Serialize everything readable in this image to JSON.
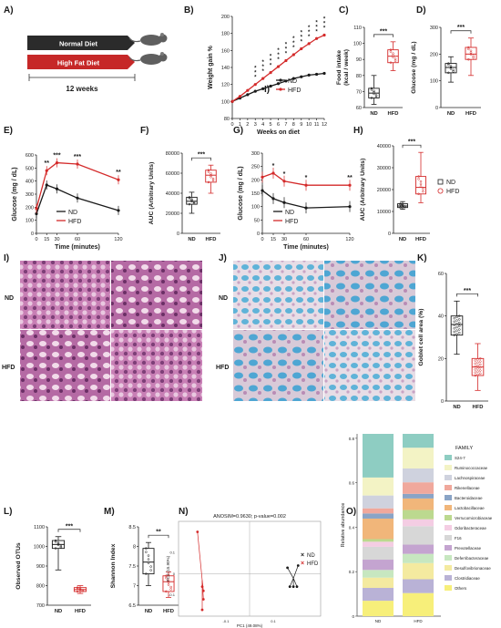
{
  "panel_letters": [
    "A)",
    "B)",
    "C)",
    "D)",
    "E)",
    "F)",
    "G)",
    "H)",
    "I)",
    "J)",
    "K)",
    "L)",
    "M)",
    "N)",
    "O)"
  ],
  "diet_labels": {
    "nd": "Normal Diet",
    "hfd": "High Fat Diet",
    "duration": "12 weeks"
  },
  "common": {
    "nd": "ND",
    "hfd": "HFD",
    "sig3": "***",
    "sig2": "**",
    "sig1": "*"
  },
  "colors": {
    "nd": "#1a1a1a",
    "hfd": "#d42a2a",
    "arrow_dark": "#2b2b2b",
    "arrow_red": "#c62828"
  },
  "histo_labels": {
    "row_nd": "ND",
    "row_hfd": "HFD"
  },
  "chart_data": [
    {
      "id": "B",
      "type": "line",
      "xlabel": "Weeks on diet",
      "ylabel": "Weight gain %",
      "ylim": [
        80,
        200
      ],
      "yticks": [
        80,
        100,
        120,
        140,
        160,
        180,
        200
      ],
      "x": [
        0,
        1,
        2,
        3,
        4,
        5,
        6,
        7,
        8,
        9,
        10,
        11,
        12
      ],
      "series": [
        {
          "name": "ND",
          "values": [
            100,
            104,
            108,
            112,
            115,
            118,
            121,
            124,
            127,
            129,
            131,
            132,
            133
          ]
        },
        {
          "name": "HFD",
          "values": [
            100,
            106,
            113,
            120,
            127,
            134,
            141,
            148,
            155,
            162,
            168,
            174,
            178
          ]
        }
      ],
      "legend_extra": "I)"
    },
    {
      "id": "C",
      "type": "box",
      "ylabel": "Food intake\n(kcal / week)",
      "ylim": [
        60,
        110
      ],
      "yticks": [
        60,
        70,
        80,
        90,
        100,
        110
      ],
      "categories": [
        "ND",
        "HFD"
      ],
      "boxes": [
        {
          "min": 62,
          "q1": 66,
          "median": 69,
          "q3": 72,
          "max": 80
        },
        {
          "min": 83,
          "q1": 88,
          "median": 92,
          "q3": 96,
          "max": 101
        }
      ],
      "sig": "***"
    },
    {
      "id": "D",
      "type": "box",
      "ylabel": "Glucose (mg / dL)",
      "ylim": [
        0,
        300
      ],
      "yticks": [
        0,
        100,
        200,
        300
      ],
      "categories": [
        "ND",
        "HFD"
      ],
      "boxes": [
        {
          "min": 95,
          "q1": 130,
          "median": 150,
          "q3": 165,
          "max": 190
        },
        {
          "min": 120,
          "q1": 180,
          "median": 200,
          "q3": 225,
          "max": 260
        }
      ],
      "sig": "***"
    },
    {
      "id": "E",
      "type": "line",
      "xlabel": "Time (minutes)",
      "ylabel": "Glucose (mg / dL)",
      "ylim": [
        0,
        600
      ],
      "yticks": [
        0,
        100,
        200,
        300,
        400,
        500,
        600
      ],
      "x": [
        0,
        15,
        30,
        60,
        120
      ],
      "series": [
        {
          "name": "ND",
          "values": [
            150,
            370,
            340,
            270,
            175
          ]
        },
        {
          "name": "HFD",
          "values": [
            190,
            480,
            540,
            530,
            410
          ]
        }
      ],
      "sig": [
        "",
        "**",
        "***",
        "***",
        "**"
      ]
    },
    {
      "id": "F",
      "type": "box",
      "ylabel": "AUC (Arbitrary Units)",
      "ylim": [
        0,
        80000
      ],
      "yticks": [
        0,
        20000,
        40000,
        60000,
        80000
      ],
      "categories": [
        "ND",
        "HFD"
      ],
      "boxes": [
        {
          "min": 20000,
          "q1": 29000,
          "median": 32000,
          "q3": 36000,
          "max": 41000
        },
        {
          "min": 40000,
          "q1": 51000,
          "median": 58000,
          "q3": 63000,
          "max": 68000
        }
      ],
      "sig": "***"
    },
    {
      "id": "G",
      "type": "line",
      "xlabel": "Time (minutes)",
      "ylabel": "Glucose (mg / dL)",
      "ylim": [
        0,
        300
      ],
      "yticks": [
        0,
        50,
        100,
        150,
        200,
        250,
        300
      ],
      "x": [
        0,
        15,
        30,
        60,
        120
      ],
      "series": [
        {
          "name": "ND",
          "values": [
            160,
            130,
            115,
            95,
            100
          ]
        },
        {
          "name": "HFD",
          "values": [
            210,
            225,
            195,
            180,
            180
          ]
        }
      ],
      "sig": [
        "",
        "*",
        "*",
        "*",
        "**"
      ]
    },
    {
      "id": "H",
      "type": "box",
      "ylabel": "AUC (Arbitrary Units)",
      "ylim": [
        0,
        40000
      ],
      "yticks": [
        0,
        10000,
        20000,
        30000,
        40000
      ],
      "categories": [
        "ND",
        "HFD"
      ],
      "boxes": [
        {
          "min": 11000,
          "q1": 11800,
          "median": 12500,
          "q3": 13500,
          "max": 14500
        },
        {
          "min": 14000,
          "q1": 18000,
          "median": 21000,
          "q3": 26000,
          "max": 37000
        }
      ],
      "sig": "***"
    },
    {
      "id": "K",
      "type": "box",
      "ylabel": "Goblet cell area (%)",
      "ylim": [
        0,
        60
      ],
      "yticks": [
        0,
        20,
        40,
        60
      ],
      "categories": [
        "ND",
        "HFD"
      ],
      "boxes": [
        {
          "min": 22,
          "q1": 31,
          "median": 36,
          "q3": 40,
          "max": 47
        },
        {
          "min": 5,
          "q1": 12,
          "median": 16,
          "q3": 20,
          "max": 27
        }
      ],
      "sig": "***"
    },
    {
      "id": "L",
      "type": "box",
      "ylabel": "Observed OTUs",
      "ylim": [
        700,
        1100
      ],
      "yticks": [
        700,
        800,
        900,
        1000,
        1100
      ],
      "categories": [
        "ND",
        "HFD"
      ],
      "boxes": [
        {
          "min": 880,
          "q1": 990,
          "median": 1010,
          "q3": 1030,
          "max": 1050
        },
        {
          "min": 760,
          "q1": 770,
          "median": 780,
          "q3": 790,
          "max": 800
        }
      ],
      "sig": "***"
    },
    {
      "id": "M",
      "type": "box",
      "ylabel": "Shannon Index",
      "ylim": [
        6.5,
        8.5
      ],
      "yticks": [
        6.5,
        7.0,
        7.5,
        8.0,
        8.5
      ],
      "categories": [
        "ND",
        "HFD"
      ],
      "boxes": [
        {
          "min": 7.0,
          "q1": 7.3,
          "median": 7.6,
          "q3": 7.95,
          "max": 8.1
        },
        {
          "min": 6.7,
          "q1": 6.85,
          "median": 7.1,
          "q3": 7.25,
          "max": 7.35
        }
      ],
      "sig": "**"
    },
    {
      "id": "N",
      "type": "scatter",
      "title": "ANOSIM=0.9630; p-value=0.002",
      "xlabel": "PC1 (49.08%)",
      "ylabel": "PC2 (15.90%)",
      "xticks": [
        "-0.1",
        "0.1"
      ],
      "yticks": [
        "0.1",
        "0",
        "-0.1"
      ],
      "series": [
        {
          "name": "ND",
          "points": [
            [
              0.16,
              0.03
            ],
            [
              0.17,
              -0.06
            ],
            [
              0.185,
              -0.06
            ],
            [
              0.2,
              -0.06
            ],
            [
              0.205,
              0.04
            ]
          ],
          "centroid": [
            0.185,
            -0.02
          ]
        },
        {
          "name": "HFD",
          "points": [
            [
              -0.22,
              0.2
            ],
            [
              -0.2,
              -0.06
            ],
            [
              -0.195,
              -0.08
            ],
            [
              -0.195,
              -0.12
            ],
            [
              -0.2,
              -0.17
            ]
          ],
          "centroid": [
            -0.2,
            -0.03
          ]
        }
      ]
    },
    {
      "id": "O",
      "type": "stacked-bar",
      "ylabel": "Relative abundance",
      "ylim": [
        0,
        1
      ],
      "yticks": [
        "0",
        "0.2",
        "0.4",
        "0.6",
        "0.8"
      ],
      "categories": [
        "ND",
        "HFD"
      ],
      "legend_title": "FAMILY",
      "series": [
        {
          "name": "S24-7",
          "color": "#8ecdc2",
          "values": [
            0.17,
            0.06
          ]
        },
        {
          "name": "Ruminococcaceae",
          "color": "#f3f3c5",
          "values": [
            0.07,
            0.09
          ]
        },
        {
          "name": "Lachnospiraceae",
          "color": "#cfd2de",
          "values": [
            0.05,
            0.06
          ]
        },
        {
          "name": "Rikenellaceae",
          "color": "#f0a89c",
          "values": [
            0.02,
            0.05
          ]
        },
        {
          "name": "Bacteroidaceae",
          "color": "#8aa4c6",
          "values": [
            0.02,
            0.02
          ]
        },
        {
          "name": "Lactobacillaceae",
          "color": "#f1b67a",
          "values": [
            0.08,
            0.05
          ]
        },
        {
          "name": "Verrucomicrobiaceae",
          "color": "#bcd98f",
          "values": [
            0.01,
            0.04
          ]
        },
        {
          "name": "Odoribacteraceae",
          "color": "#f4cde3",
          "values": [
            0.02,
            0.03
          ]
        },
        {
          "name": "F16",
          "color": "#d7d7d7",
          "values": [
            0.05,
            0.08
          ]
        },
        {
          "name": "Prevotellaceae",
          "color": "#c4a4d0",
          "values": [
            0.04,
            0.04
          ]
        },
        {
          "name": "Deferribacteraceae",
          "color": "#c7e7c0",
          "values": [
            0.03,
            0.04
          ]
        },
        {
          "name": "Desulfovibrionaceae",
          "color": "#f4eaa0",
          "values": [
            0.04,
            0.07
          ]
        },
        {
          "name": "Clostridiaceae",
          "color": "#b9b2d6",
          "values": [
            0.05,
            0.06
          ]
        },
        {
          "name": "Others",
          "color": "#f7ef7a",
          "values": [
            0.06,
            0.1
          ]
        }
      ]
    }
  ]
}
